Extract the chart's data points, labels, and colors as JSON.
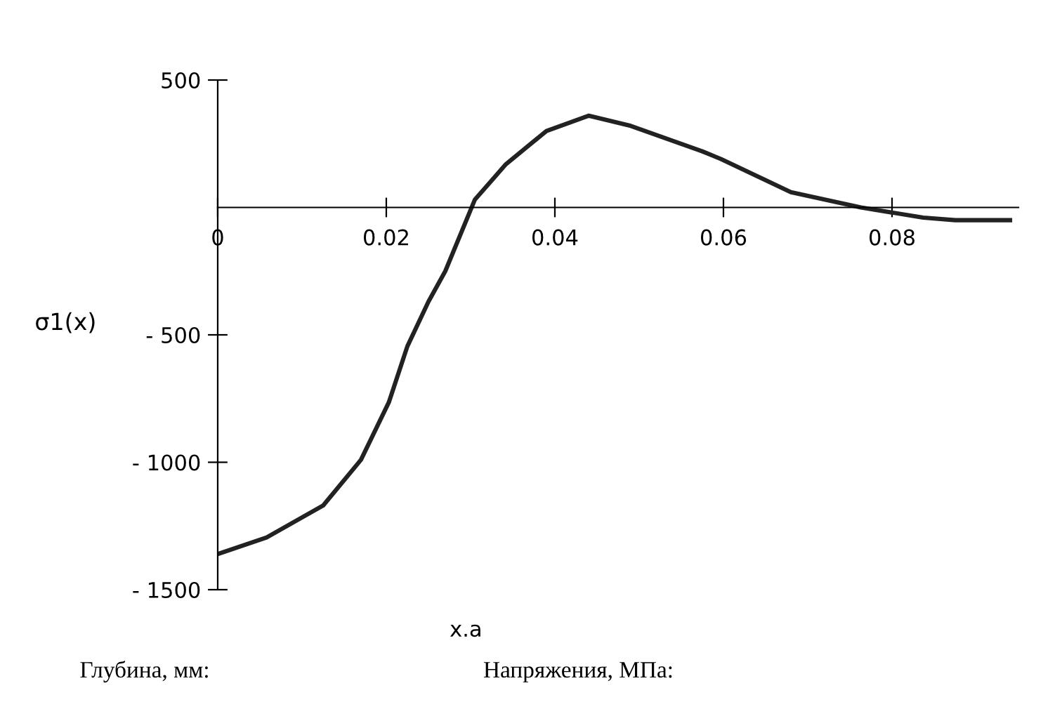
{
  "chart_data": {
    "type": "line",
    "xlabel": "x.a",
    "ylabel": "σ1(x)",
    "x": [
      0,
      0.0058,
      0.0125,
      0.017,
      0.0203,
      0.0225,
      0.025,
      0.027,
      0.0305,
      0.0342,
      0.039,
      0.044,
      0.049,
      0.0575,
      0.0597,
      0.068,
      0.0763,
      0.0837,
      0.0875,
      0.094
    ],
    "series": [
      {
        "color": "#222222",
        "values": [
          -1360,
          -1295,
          -1170,
          -990,
          -765,
          -545,
          -370,
          -250,
          30,
          170,
          300,
          360,
          320,
          220,
          190,
          60,
          0,
          -40,
          -50,
          -50
        ]
      }
    ],
    "xlim": [
      0,
      0.095
    ],
    "ylim": [
      -1500,
      500
    ],
    "xticks": [
      0,
      0.02,
      0.04,
      0.06,
      0.08
    ],
    "yticks": [
      500,
      {
        "value": -500,
        "label": "- 500"
      },
      {
        "value": -1000,
        "label": "- 1000"
      },
      {
        "value": -1500,
        "label": "- 1500"
      }
    ],
    "grid": false,
    "marker": "none",
    "line_style": "solid",
    "annotations": [
      "Глубина, мм:",
      "Напряжения, МПа:"
    ]
  }
}
